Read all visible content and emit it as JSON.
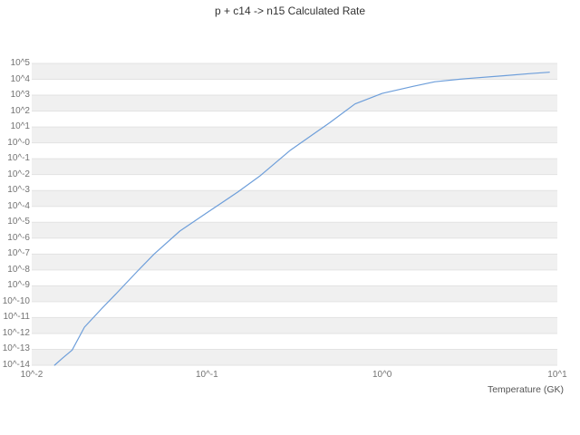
{
  "chart_data": {
    "type": "line",
    "title": "p + c14 -> n15 Calculated Rate",
    "xlabel": "Temperature (GK)",
    "ylabel": "",
    "x_scale": "log",
    "y_scale": "log",
    "xlim_log10": [
      -2,
      1
    ],
    "ylim_log10": [
      -14,
      5
    ],
    "grid": "horizontal-bands",
    "legend": "none",
    "x_ticks": [
      {
        "label": "10^-2",
        "log10": -2
      },
      {
        "label": "10^-1",
        "log10": -1
      },
      {
        "label": "10^0",
        "log10": 0
      },
      {
        "label": "10^1",
        "log10": 1
      }
    ],
    "y_ticks": [
      {
        "label": "10^5",
        "log10": 5
      },
      {
        "label": "10^4",
        "log10": 4
      },
      {
        "label": "10^3",
        "log10": 3
      },
      {
        "label": "10^2",
        "log10": 2
      },
      {
        "label": "10^1",
        "log10": 1
      },
      {
        "label": "10^-0",
        "log10": 0
      },
      {
        "label": "10^-1",
        "log10": -1
      },
      {
        "label": "10^-2",
        "log10": -2
      },
      {
        "label": "10^-3",
        "log10": -3
      },
      {
        "label": "10^-4",
        "log10": -4
      },
      {
        "label": "10^-5",
        "log10": -5
      },
      {
        "label": "10^-6",
        "log10": -6
      },
      {
        "label": "10^-7",
        "log10": -7
      },
      {
        "label": "10^-8",
        "log10": -8
      },
      {
        "label": "10^-9",
        "log10": -9
      },
      {
        "label": "10^-10",
        "log10": -10
      },
      {
        "label": "10^-11",
        "log10": -11
      },
      {
        "label": "10^-12",
        "log10": -12
      },
      {
        "label": "10^-13",
        "log10": -13
      },
      {
        "label": "10^-14",
        "log10": -14
      }
    ],
    "colors": {
      "line": "#6d9eda",
      "band": "#f0f0f0",
      "grid": "#e2e2e2",
      "tick_text": "#737373",
      "title_text": "#333333"
    },
    "series": [
      {
        "name": "p + c14 -> n15 calculated rate",
        "x": [
          0.0135,
          0.015,
          0.017,
          0.02,
          0.025,
          0.03,
          0.04,
          0.05,
          0.07,
          0.1,
          0.15,
          0.2,
          0.3,
          0.4,
          0.5,
          0.7,
          1.0,
          1.5,
          2.0,
          3.0,
          5.0,
          7.0,
          9.0
        ],
        "y": [
          1e-14,
          2.8e-14,
          9e-14,
          2.5e-12,
          3.5e-11,
          2.8e-10,
          8e-09,
          1e-07,
          2.8e-06,
          4e-05,
          0.0008,
          0.008,
          0.35,
          3.2,
          18,
          280,
          1300,
          3600,
          7000,
          11000,
          17000,
          23000,
          28000
        ]
      }
    ]
  }
}
